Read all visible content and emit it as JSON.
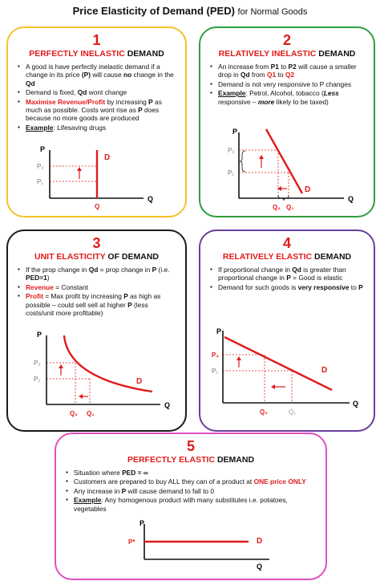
{
  "title": {
    "main": "Price Elasticity of Demand (PED)",
    "sub": "for Normal Goods"
  },
  "colors": {
    "red": "#e01b1b",
    "card1": "#f3c32b",
    "card2": "#2e9e3e",
    "card3": "#1a1a1a",
    "card4": "#6a3d9a",
    "card5": "#e14ec0"
  },
  "card1": {
    "number": "1",
    "heading_red": "PERFECTLY INELASTIC",
    "heading_black": "DEMAND",
    "b1_a": "A good is have perfectly inelastic demand if a change in its price ",
    "b1_b": "(P)",
    "b1_c": " will cause ",
    "b1_d": "no",
    "b1_e": " change in the ",
    "b1_f": "Qd",
    "b2_a": "Demand is fixed, ",
    "b2_b": "Qd",
    "b2_c": " wont change",
    "b3_a": "Maximise Revenue/Profit",
    "b3_b": " by increasing ",
    "b3_c": "P",
    "b3_d": " as much as possible. Costs wont rise as ",
    "b3_e": "P",
    "b3_f": " does because no more goods are produced",
    "b4_a": "Example",
    "b4_b": ": Lifesaving drugs",
    "graph": {
      "y": "P",
      "x": "Q",
      "p2": "P₂",
      "p1": "P₁",
      "d": "D",
      "q": "Q"
    }
  },
  "card2": {
    "number": "2",
    "heading_red": "RELATIVELY INELASTIC",
    "heading_black": "DEMAND",
    "b1_a": "An increase from ",
    "b1_b": "P1",
    "b1_c": " to ",
    "b1_d": "P2",
    "b1_e": " will cause a smaller drop in ",
    "b1_f": "Qd",
    "b1_g": " from ",
    "b1_h": "Q1",
    "b1_i": " to ",
    "b1_j": "Q2",
    "b2": "Demand is not very responsive to P changes",
    "b3_a": "Example",
    "b3_b": ": Petrol, Alcohol, tobacco (",
    "b3_c": "Less",
    "b3_d": " responsive – ",
    "b3_e": "more",
    "b3_f": " likely to be taxed)",
    "graph": {
      "y": "P",
      "x": "Q",
      "p2": "P₂",
      "p1": "P₁",
      "d": "D",
      "q2": "Q₂",
      "q1": "Q₁"
    }
  },
  "card3": {
    "number": "3",
    "heading_red": "UNIT ELASTICITY",
    "heading_black": "OF DEMAND",
    "b1_a": "If the prop change in ",
    "b1_b": "Qd",
    "b1_c": " = prop change in ",
    "b1_d": "P",
    "b1_e": " (i.e. ",
    "b1_f": "PED=1",
    "b1_g": ")",
    "b2_a": "Revenue",
    "b2_b": " = Constant",
    "b3_a": "Profit",
    "b3_b": " = Max profit by increasing ",
    "b3_c": "P",
    "b3_d": " as high as possible – could sell sell at higher ",
    "b3_e": "P",
    "b3_f": " (less costs/unit more profitable)",
    "graph": {
      "y": "P",
      "x": "Q",
      "p2": "P₂",
      "p1": "P₁",
      "d": "D",
      "q2": "Q₂",
      "q1": "Q₁"
    }
  },
  "card4": {
    "number": "4",
    "heading_red": "RELATIVELY ELASTIC",
    "heading_black": "DEMAND",
    "b1_a": "If proportional change in ",
    "b1_b": "Qd",
    "b1_c": " is greater than proportional change in ",
    "b1_d": "P",
    "b1_e": " = Good is elastic",
    "b2_a": "Demand for such goods is ",
    "b2_b": "very responsive",
    "b2_c": " to ",
    "b2_d": "P",
    "graph": {
      "y": "P",
      "x": "Q",
      "p2": "P₂",
      "p1": "P₁",
      "d": "D",
      "q2": "Q₂",
      "q1": "Q₁"
    }
  },
  "card5": {
    "number": "5",
    "heading_red": "PERFECTLY ELASTIC",
    "heading_black": "DEMAND",
    "b1_a": "Situation where ",
    "b1_b": "PED = ∞",
    "b2_a": "Customers are prepared to buy ALL they can of a product at ",
    "b2_b": "ONE price ONLY",
    "b3_a": "Any increase in ",
    "b3_b": "P",
    "b3_c": " will cause demand to fall to 0",
    "b4_a": "Example",
    "b4_b": ": Any homogenous product with many substitutes i.e. potatoes, vegetables",
    "graph": {
      "y": "P",
      "x": "Q",
      "pstar": "P*",
      "d": "D"
    }
  }
}
